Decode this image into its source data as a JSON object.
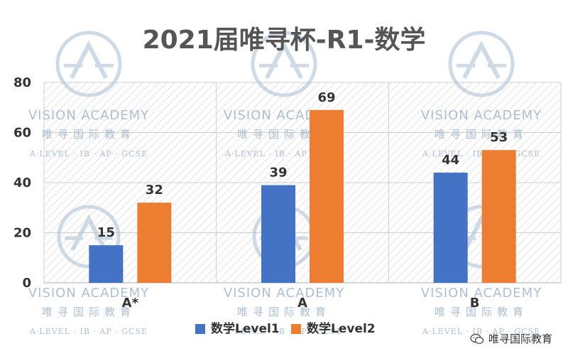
{
  "chart_data": {
    "type": "bar",
    "title": "2021届唯寻杯-R1-数学",
    "categories": [
      "A*",
      "A",
      "B"
    ],
    "series": [
      {
        "name": "数学Level1",
        "values": [
          15,
          39,
          44
        ]
      },
      {
        "name": "数学Level2",
        "values": [
          32,
          69,
          53
        ]
      }
    ],
    "ylim": [
      0,
      80
    ],
    "yticks": [
      0,
      20,
      40,
      60,
      80
    ],
    "grid": true,
    "legend_position": "bottom",
    "colors": [
      "#4472c4",
      "#ed7d31"
    ],
    "data_labels": true
  },
  "watermark": {
    "brand": "VISION ACADEMY",
    "chinese": "唯寻国际教育",
    "subline": "A·LEVEL · IB · AP · GCSE"
  },
  "footer": {
    "wechat_name": "唯寻国际教育",
    "wechat_icon": "wechat-icon"
  }
}
